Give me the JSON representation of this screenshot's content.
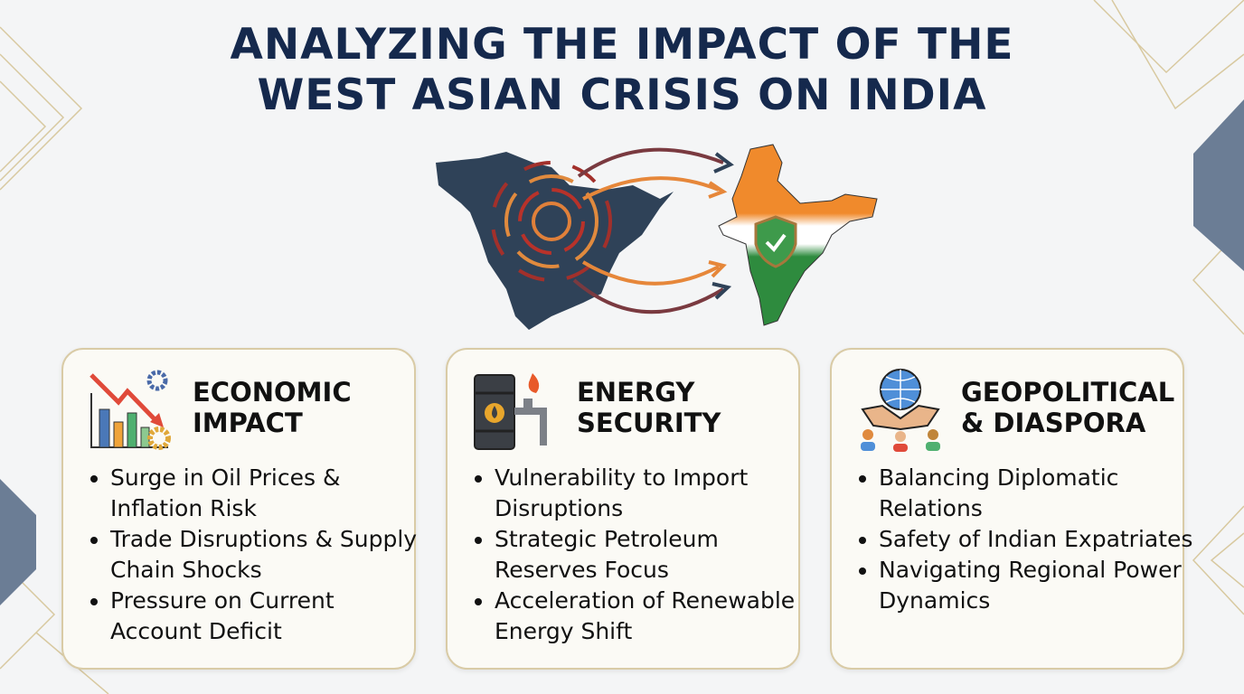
{
  "title": {
    "line1": "ANALYZING THE IMPACT OF THE",
    "line2": "WEST ASIAN CRISIS ON INDIA"
  },
  "colors": {
    "title": "#15294d",
    "card_border": "#d9cba6",
    "saffron": "#f08a2c",
    "green": "#2e8b3e",
    "map_navy": "#2f4258"
  },
  "cards": [
    {
      "icon": "chart-decline-gears-icon",
      "title_line1": "ECONOMIC",
      "title_line2": "IMPACT",
      "bullets": [
        "Surge in Oil Prices & Inflation Risk",
        "Trade Disruptions & Supply Chain Shocks",
        "Pressure on Current Account Deficit"
      ]
    },
    {
      "icon": "oil-barrel-pipeline-icon",
      "title_line1": "ENERGY",
      "title_line2": "SECURITY",
      "bullets": [
        "Vulnerability to Import Disruptions",
        "Strategic Petroleum Reserves Focus",
        "Acceleration of Renewable Energy Shift"
      ]
    },
    {
      "icon": "globe-handshake-people-icon",
      "title_line1": "GEOPOLITICAL",
      "title_line2": "& DIASPORA",
      "bullets": [
        "Balancing Diplomatic Relations",
        "Safety of Indian Expatriates",
        "Navigating Regional Power Dynamics"
      ]
    }
  ]
}
